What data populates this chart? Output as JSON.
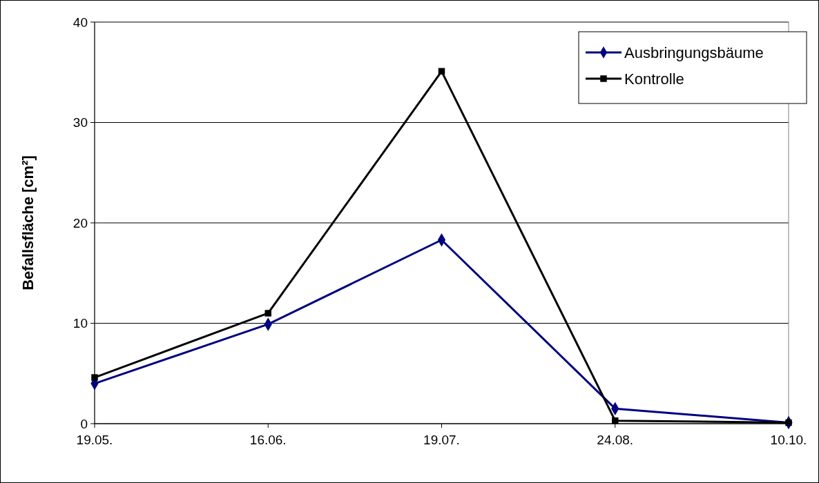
{
  "chart_data": {
    "type": "line",
    "ylabel": "Befallsfläche [cm²]",
    "categories": [
      "19.05.",
      "16.06.",
      "19.07.",
      "24.08.",
      "10.10."
    ],
    "series": [
      {
        "name": "Ausbringungsbäume",
        "color": "#000080",
        "marker": "diamond",
        "values": [
          4.0,
          9.9,
          18.3,
          1.5,
          0.1
        ]
      },
      {
        "name": "Kontrolle",
        "color": "#000000",
        "marker": "square",
        "values": [
          4.6,
          11.0,
          35.1,
          0.3,
          0.1
        ]
      }
    ],
    "ylim": [
      0,
      40
    ],
    "yticks": [
      0,
      10,
      20,
      30,
      40
    ],
    "grid": "y",
    "legend": "top right"
  }
}
